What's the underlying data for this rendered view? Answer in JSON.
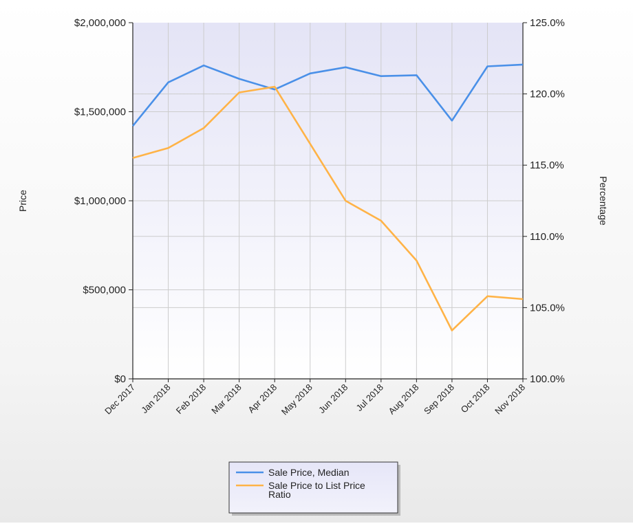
{
  "chart_data": {
    "type": "line",
    "categories": [
      "Dec 2017",
      "Jan 2018",
      "Feb 2018",
      "Mar 2018",
      "Apr 2018",
      "May 2018",
      "Jun 2018",
      "Jul 2018",
      "Aug 2018",
      "Sep 2018",
      "Oct 2018",
      "Nov 2018"
    ],
    "series": [
      {
        "name": "Sale Price, Median",
        "axis": "left",
        "color": "#4a90e8",
        "values": [
          1420000,
          1665000,
          1760000,
          1685000,
          1625000,
          1715000,
          1750000,
          1700000,
          1705000,
          1450000,
          1755000,
          1765000
        ]
      },
      {
        "name": "Sale Price to List Price Ratio",
        "axis": "right",
        "color": "#ffb347",
        "values": [
          115.5,
          116.2,
          117.6,
          120.1,
          120.5,
          116.5,
          112.5,
          111.1,
          108.3,
          103.4,
          105.8,
          105.6
        ]
      }
    ],
    "y_left": {
      "label": "Price",
      "ticks": [
        {
          "value": 0,
          "label": "$0"
        },
        {
          "value": 500000,
          "label": "$500,000"
        },
        {
          "value": 1000000,
          "label": "$1,000,000"
        },
        {
          "value": 1500000,
          "label": "$1,500,000"
        },
        {
          "value": 2000000,
          "label": "$2,000,000"
        }
      ],
      "range": [
        0,
        2000000
      ]
    },
    "y_right": {
      "label": "Percentage",
      "ticks": [
        {
          "value": 100,
          "label": "100.0%"
        },
        {
          "value": 105,
          "label": "105.0%"
        },
        {
          "value": 110,
          "label": "110.0%"
        },
        {
          "value": 115,
          "label": "115.0%"
        },
        {
          "value": 120,
          "label": "120.0%"
        },
        {
          "value": 125,
          "label": "125.0%"
        }
      ],
      "range": [
        100,
        125
      ]
    },
    "legend": {
      "position": "bottom-center",
      "entries": [
        {
          "lines": [
            "Sale Price, Median"
          ],
          "color": "#4a90e8"
        },
        {
          "lines": [
            "Sale Price to List Price",
            "Ratio"
          ],
          "color": "#ffb347"
        }
      ]
    },
    "grid": true,
    "plot_background": "#e8e8f8"
  }
}
